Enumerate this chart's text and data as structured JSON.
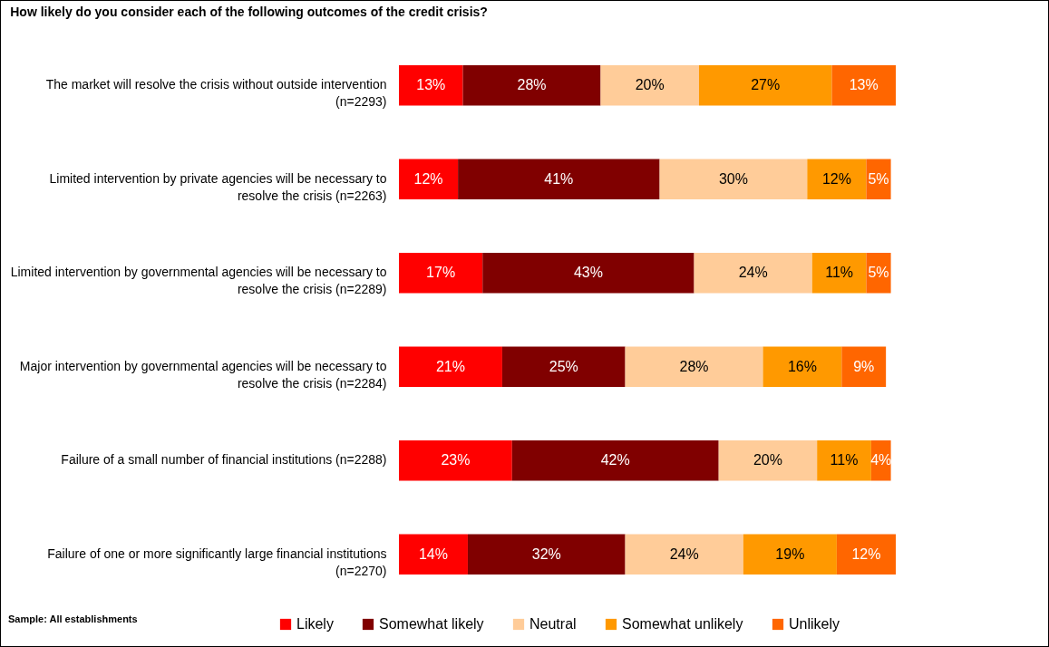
{
  "chart_data": {
    "type": "bar",
    "orientation": "horizontal",
    "stacked": true,
    "title": "How likely do you consider each of the following outcomes of the credit crisis?",
    "categories": [
      "The market will resolve the crisis without outside intervention (n=2293)",
      "Limited intervention by private agencies will be necessary to resolve the crisis (n=2263)",
      "Limited intervention by governmental agencies will be necessary to resolve the crisis  (n=2289)",
      "Major intervention by governmental agencies will be necessary to resolve the crisis (n=2284)",
      "Failure of a small number of financial institutions (n=2288)",
      "Failure of one or more significantly large financial institutions (n=2270)"
    ],
    "series": [
      {
        "name": "Likely",
        "color": "#ff0000",
        "values": [
          13,
          12,
          17,
          21,
          23,
          14
        ],
        "value_labels": [
          "13%",
          "12%",
          "17%",
          "21%",
          "23%",
          "14%"
        ]
      },
      {
        "name": "Somewhat likely",
        "color": "#800000",
        "values": [
          28,
          41,
          43,
          25,
          42,
          32
        ],
        "value_labels": [
          "28%",
          "41%",
          "43%",
          "25%",
          "42%",
          "32%"
        ]
      },
      {
        "name": "Neutral",
        "color": "#ffcc99",
        "values": [
          20,
          30,
          24,
          28,
          20,
          24
        ],
        "value_labels": [
          "20%",
          "30%",
          "24%",
          "28%",
          "20%",
          "24%"
        ]
      },
      {
        "name": "Somewhat unlikely",
        "color": "#ff9900",
        "values": [
          27,
          12,
          11,
          16,
          11,
          19
        ],
        "value_labels": [
          "27%",
          "12%",
          "11%",
          "16%",
          "11%",
          "19%"
        ]
      },
      {
        "name": "Unlikely",
        "color": "#ff6600",
        "values": [
          13,
          5,
          5,
          9,
          4,
          12
        ],
        "value_labels": [
          "13%",
          "5%",
          "5%",
          "9%",
          "4%",
          "12%"
        ]
      }
    ],
    "legend": "bottom",
    "grid": false,
    "annotations": [
      "Sample: All establishments"
    ]
  }
}
